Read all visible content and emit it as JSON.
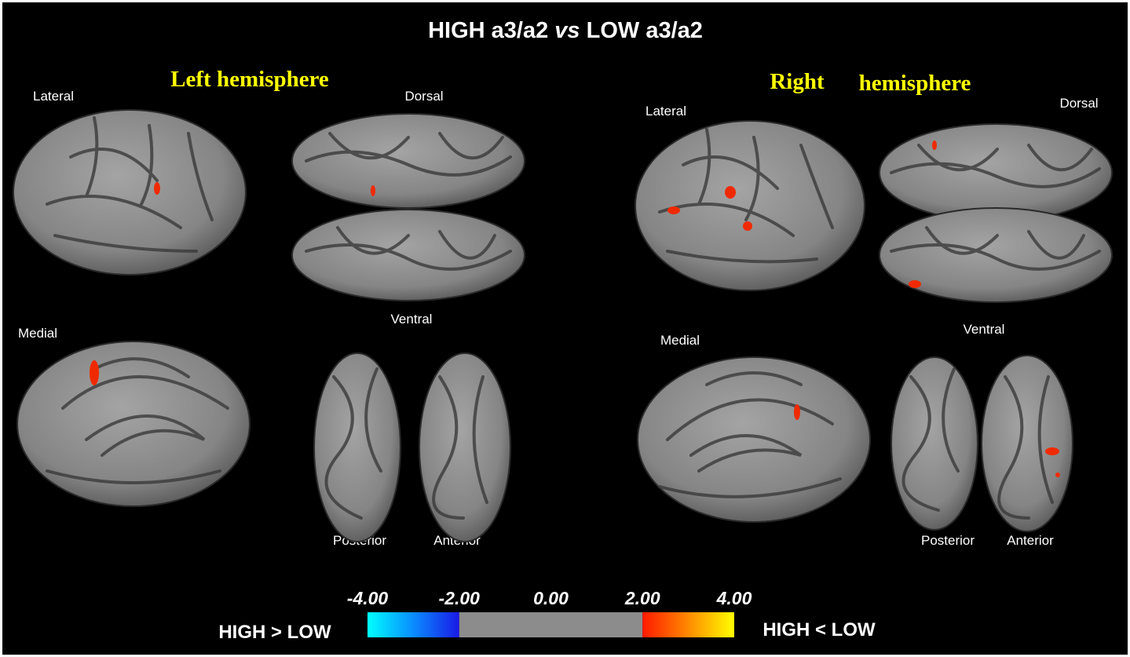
{
  "figure": {
    "title": [
      "HIGH a3/a2",
      "vs",
      "LOW a3/a2"
    ],
    "left": {
      "heading": "Left hemisphere",
      "views": [
        "Lateral",
        "Dorsal",
        "Medial",
        "Ventral",
        "Posterior",
        "Anterior"
      ]
    },
    "right": {
      "heading": [
        "Right",
        "hemisphere"
      ],
      "views": [
        "Lateral",
        "Dorsal",
        "Medial",
        "Ventral",
        "Posterior",
        "Anterior"
      ]
    },
    "colorbar": {
      "type": "colorbar",
      "lim": [
        -4,
        4
      ],
      "ticks": [
        {
          "value": -4,
          "label": "-4.00"
        },
        {
          "value": -2,
          "label": "-2.00"
        },
        {
          "value": 0,
          "label": "0.00"
        },
        {
          "value": 2,
          "label": "2.00"
        },
        {
          "value": 4,
          "label": "4.00"
        }
      ],
      "left_label": "HIGH > LOW",
      "right_label": "HIGH < LOW"
    }
  }
}
